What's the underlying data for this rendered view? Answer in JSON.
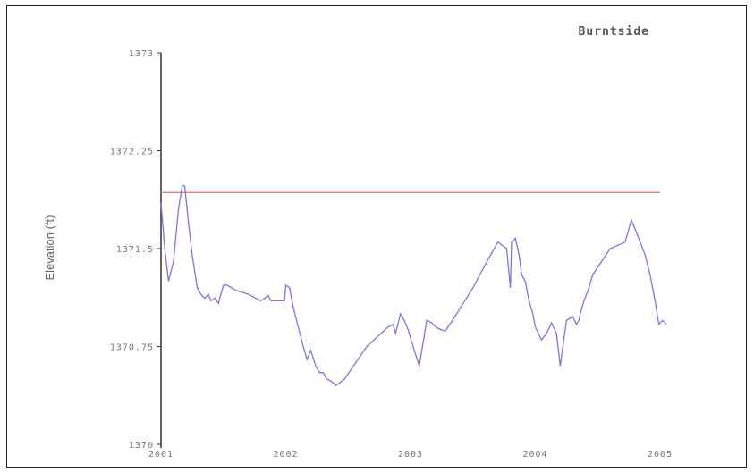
{
  "chart_data": {
    "type": "line",
    "title": "Burntside",
    "xlabel": "",
    "ylabel": "Elevation (ft)",
    "xlim": [
      2001,
      2005
    ],
    "ylim": [
      1370,
      1373
    ],
    "x_ticks": [
      2001,
      2002,
      2003,
      2004,
      2005
    ],
    "x_tick_labels": [
      "2001",
      "2002",
      "2003",
      "2004",
      "2005"
    ],
    "y_ticks": [
      1370,
      1370.75,
      1371.5,
      1372.25,
      1373
    ],
    "y_tick_labels": [
      "1370",
      "1370.75",
      "1371.5",
      "1372.25",
      "1373"
    ],
    "grid": false,
    "reference_line": {
      "value": 1371.93,
      "color": "#ee6666"
    },
    "series": [
      {
        "color": "#7777dd",
        "x": [
          2001.0,
          2001.03,
          2001.06,
          2001.1,
          2001.14,
          2001.17,
          2001.19,
          2001.22,
          2001.25,
          2001.29,
          2001.32,
          2001.35,
          2001.38,
          2001.4,
          2001.43,
          2001.46,
          2001.48,
          2001.5,
          2001.53,
          2001.6,
          2001.7,
          2001.8,
          2001.86,
          2001.88,
          2001.91,
          2001.95,
          2001.99,
          2002.0,
          2002.03,
          2002.06,
          2002.1,
          2002.14,
          2002.17,
          2002.2,
          2002.24,
          2002.27,
          2002.3,
          2002.33,
          2002.37,
          2002.4,
          2002.43,
          2002.47,
          2002.65,
          2002.82,
          2002.86,
          2002.88,
          2002.92,
          2002.95,
          2002.98,
          2003.02,
          2003.07,
          2003.13,
          2003.17,
          2003.2,
          2003.24,
          2003.28,
          2003.35,
          2003.5,
          2003.6,
          2003.7,
          2003.77,
          2003.8,
          2003.81,
          2003.84,
          2003.87,
          2003.89,
          2003.92,
          2003.95,
          2003.98,
          2004.0,
          2004.05,
          2004.09,
          2004.13,
          2004.17,
          2004.2,
          2004.25,
          2004.3,
          2004.33,
          2004.35,
          2004.36,
          2004.39,
          2004.43,
          2004.46,
          2004.6,
          2004.72,
          2004.75,
          2004.77,
          2004.8,
          2004.84,
          2004.88,
          2004.92,
          2004.96,
          2004.99,
          2005.02,
          2005.05
        ],
        "y": [
          1371.85,
          1371.5,
          1371.25,
          1371.4,
          1371.8,
          1371.98,
          1371.98,
          1371.7,
          1371.45,
          1371.2,
          1371.15,
          1371.12,
          1371.15,
          1371.1,
          1371.12,
          1371.08,
          1371.15,
          1371.22,
          1371.22,
          1371.18,
          1371.15,
          1371.1,
          1371.14,
          1371.1,
          1371.1,
          1371.1,
          1371.1,
          1371.22,
          1371.2,
          1371.05,
          1370.9,
          1370.75,
          1370.65,
          1370.72,
          1370.6,
          1370.55,
          1370.55,
          1370.5,
          1370.48,
          1370.45,
          1370.47,
          1370.5,
          1370.75,
          1370.9,
          1370.92,
          1370.85,
          1371.0,
          1370.95,
          1370.88,
          1370.75,
          1370.6,
          1370.95,
          1370.93,
          1370.9,
          1370.88,
          1370.87,
          1370.97,
          1371.2,
          1371.38,
          1371.55,
          1371.5,
          1371.2,
          1371.55,
          1371.58,
          1371.45,
          1371.3,
          1371.25,
          1371.1,
          1371.0,
          1370.9,
          1370.8,
          1370.85,
          1370.93,
          1370.85,
          1370.6,
          1370.95,
          1370.98,
          1370.92,
          1370.95,
          1371.0,
          1371.1,
          1371.2,
          1371.3,
          1371.5,
          1371.55,
          1371.65,
          1371.72,
          1371.65,
          1371.55,
          1371.45,
          1371.3,
          1371.1,
          1370.92,
          1370.95,
          1370.92
        ]
      }
    ]
  }
}
